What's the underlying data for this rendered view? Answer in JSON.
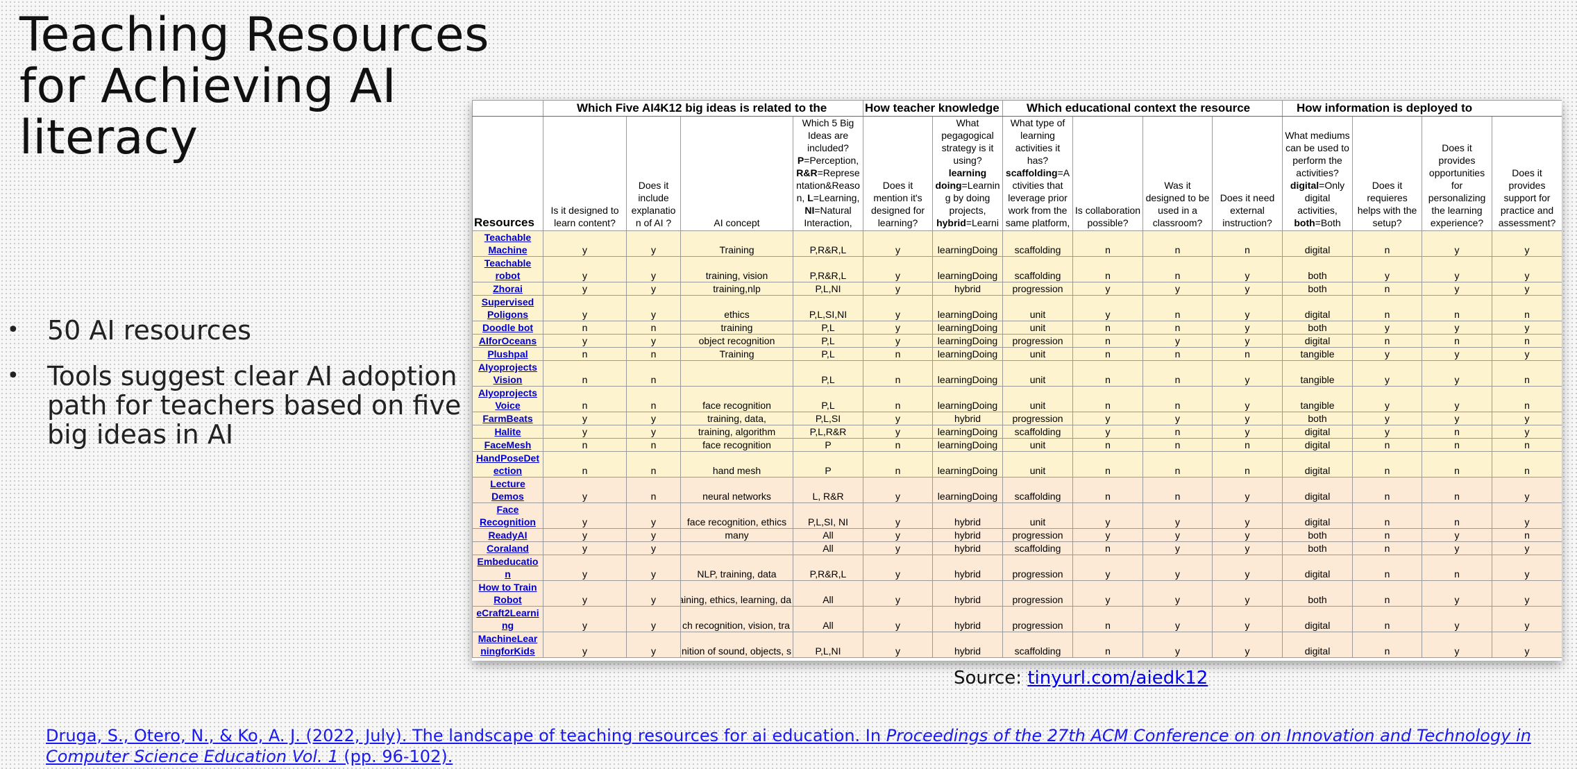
{
  "title": "Teaching Resources for Achieving AI literacy",
  "bullets": [
    "50 AI resources",
    "Tools suggest clear AI adoption path for teachers based on five big ideas in AI"
  ],
  "source_label": "Source:",
  "source_link": "tinyurl.com/aiedk12",
  "citation_plain": "Druga, S., Otero, N., & Ko, A. J. (2022, July). The landscape of teaching resources for ai education. In ",
  "citation_italic": "Proceedings of the 27th ACM Conference on on Innovation and Technology in Computer Science Education Vol. 1",
  "citation_end": " (pp. 96-102).",
  "table": {
    "groups": [
      "Which Five AI4K12 big ideas is related to the",
      "How teacher knowledge of technolo-",
      "Which educational context the resource",
      "How information is deployed to"
    ],
    "headers": {
      "resources": "Resources",
      "c1": "Is it designed to learn content?",
      "c2": "Does it include explanatio n of AI ?",
      "c3": "AI concept",
      "c4_pre": "Which 5 Big Ideas are included?",
      "c4_p": "P",
      "c4_p_t": "=Perception,",
      "c4_rr": "R&R",
      "c4_rr_t": "=Represe ntation&Reaso n,",
      "c4_l": "L",
      "c4_l_t": "=Learning,",
      "c4_ni": "NI",
      "c4_ni_t": "=Natural Interaction,",
      "c5": "Does it mention it's designed for learning?",
      "c6_pre": "What pegagogical strategy is it using?",
      "c6_ld": "learning doing",
      "c6_ld_t": "=Learnin g by doing projects,",
      "c6_h": "hybrid",
      "c6_h_t": "=Learni",
      "c7_pre": "What type of learning activities it has?",
      "c7_s": "scaffolding",
      "c7_s_t": "=A ctivities that leverage prior work from the same platform,",
      "c8": "Is collaboration possible?",
      "c9": "Was it designed to be used in a classroom?",
      "c10": "Does it need external instruction?",
      "c11_pre": "What mediums can be used to perform the activities?",
      "c11_d": "digital",
      "c11_d_t": "=Only digital activities,",
      "c11_b": "both",
      "c11_b_t": "=Both",
      "c12": "Does it requieres helps with the setup?",
      "c13": "Does it provides opportunities for personalizing the learning experience?",
      "c14": "Does it provides support for practice and assessment?"
    },
    "rows": [
      {
        "name": [
          "Teachable",
          "Machine"
        ],
        "v": [
          "y",
          "y",
          "Training",
          "P,R&R,L",
          "y",
          "learningDoing",
          "scaffolding",
          "n",
          "n",
          "n",
          "digital",
          "n",
          "y",
          "y"
        ]
      },
      {
        "name": [
          "Teachable",
          "robot"
        ],
        "v": [
          "y",
          "y",
          "training, vision",
          "P,R&R,L",
          "y",
          "learningDoing",
          "scaffolding",
          "n",
          "n",
          "y",
          "both",
          "y",
          "y",
          "y"
        ]
      },
      {
        "name": [
          "Zhorai"
        ],
        "v": [
          "y",
          "y",
          "training,nlp",
          "P,L,NI",
          "y",
          "hybrid",
          "progression",
          "y",
          "y",
          "y",
          "both",
          "n",
          "y",
          "y"
        ]
      },
      {
        "name": [
          "Supervised",
          "Poligons"
        ],
        "v": [
          "y",
          "y",
          "ethics",
          "P,L,SI,NI",
          "y",
          "learningDoing",
          "unit",
          "y",
          "n",
          "y",
          "digital",
          "n",
          "n",
          "n"
        ]
      },
      {
        "name": [
          "Doodle bot"
        ],
        "v": [
          "n",
          "n",
          "training",
          "P,L",
          "y",
          "learningDoing",
          "unit",
          "n",
          "n",
          "y",
          "both",
          "y",
          "y",
          "y"
        ]
      },
      {
        "name": [
          "AIforOceans"
        ],
        "v": [
          "y",
          "y",
          "object recognition",
          "P,L",
          "y",
          "learningDoing",
          "progression",
          "n",
          "y",
          "y",
          "digital",
          "n",
          "n",
          "n"
        ]
      },
      {
        "name": [
          "Plushpal"
        ],
        "v": [
          "n",
          "n",
          "Training",
          "P,L",
          "n",
          "learningDoing",
          "unit",
          "n",
          "n",
          "n",
          "tangible",
          "y",
          "y",
          "y"
        ]
      },
      {
        "name": [
          "AIyoprojects",
          "Vision"
        ],
        "v": [
          "n",
          "n",
          "",
          "P,L",
          "n",
          "learningDoing",
          "unit",
          "n",
          "n",
          "y",
          "tangible",
          "y",
          "y",
          "n"
        ]
      },
      {
        "name": [
          "AIyoprojects",
          "Voice"
        ],
        "v": [
          "n",
          "n",
          "face recognition",
          "P,L",
          "n",
          "learningDoing",
          "unit",
          "n",
          "n",
          "y",
          "tangible",
          "y",
          "y",
          "n"
        ]
      },
      {
        "name": [
          "FarmBeats"
        ],
        "v": [
          "y",
          "y",
          "training, data,",
          "P,L,SI",
          "y",
          "hybrid",
          "progression",
          "y",
          "y",
          "y",
          "both",
          "y",
          "y",
          "y"
        ]
      },
      {
        "name": [
          "Halite"
        ],
        "v": [
          "y",
          "y",
          "training, algorithm",
          "P,L,R&R",
          "y",
          "learningDoing",
          "scaffolding",
          "y",
          "n",
          "y",
          "digital",
          "y",
          "n",
          "y"
        ]
      },
      {
        "name": [
          "FaceMesh"
        ],
        "v": [
          "n",
          "n",
          "face recognition",
          "P",
          "n",
          "learningDoing",
          "unit",
          "n",
          "n",
          "n",
          "digital",
          "n",
          "n",
          "n"
        ]
      },
      {
        "name": [
          "HandPoseDet",
          "ection"
        ],
        "v": [
          "n",
          "n",
          "hand mesh",
          "P",
          "n",
          "learningDoing",
          "unit",
          "n",
          "n",
          "n",
          "digital",
          "n",
          "n",
          "n"
        ]
      },
      {
        "name": [
          "Lecture",
          "Demos"
        ],
        "v": [
          "y",
          "n",
          "neural networks",
          "L, R&R",
          "y",
          "learningDoing",
          "scaffolding",
          "n",
          "n",
          "y",
          "digital",
          "n",
          "n",
          "y"
        ]
      },
      {
        "name": [
          "Face",
          "Recognition"
        ],
        "v": [
          "y",
          "y",
          "face recognition, ethics",
          "P,L,SI, NI",
          "y",
          "hybrid",
          "unit",
          "y",
          "y",
          "y",
          "digital",
          "n",
          "n",
          "y"
        ]
      },
      {
        "name": [
          "ReadyAI"
        ],
        "v": [
          "y",
          "y",
          "many",
          "All",
          "y",
          "hybrid",
          "progression",
          "y",
          "y",
          "y",
          "both",
          "n",
          "y",
          "n"
        ]
      },
      {
        "name": [
          "Coraland"
        ],
        "v": [
          "y",
          "y",
          "",
          "All",
          "y",
          "hybrid",
          "scaffolding",
          "n",
          "y",
          "y",
          "both",
          "n",
          "y",
          "y"
        ]
      },
      {
        "name": [
          "Embeducatio",
          "n"
        ],
        "v": [
          "y",
          "y",
          "NLP, training, data",
          "P,R&R,L",
          "y",
          "hybrid",
          "progression",
          "y",
          "y",
          "y",
          "digital",
          "n",
          "n",
          "y"
        ]
      },
      {
        "name": [
          "How to Train",
          "Robot"
        ],
        "v": [
          "y",
          "y",
          "aining, ethics, learning, da",
          "All",
          "y",
          "hybrid",
          "progression",
          "y",
          "y",
          "y",
          "both",
          "n",
          "y",
          "y"
        ]
      },
      {
        "name": [
          "eCraft2Learni",
          "ng"
        ],
        "v": [
          "y",
          "y",
          "ch recognition, vision, tra",
          "All",
          "y",
          "hybrid",
          "progression",
          "n",
          "y",
          "y",
          "digital",
          "n",
          "y",
          "y"
        ]
      },
      {
        "name": [
          "MachineLear",
          "ningforKids"
        ],
        "v": [
          "y",
          "y",
          "nition of sound, objects, s",
          "P,L,NI",
          "y",
          "hybrid",
          "scaffolding",
          "n",
          "y",
          "y",
          "digital",
          "n",
          "y",
          "y"
        ]
      }
    ]
  },
  "colors": {
    "yellow_row": "#fdf3cf",
    "orange_row": "#fce9d6",
    "link": "#0000cc"
  }
}
